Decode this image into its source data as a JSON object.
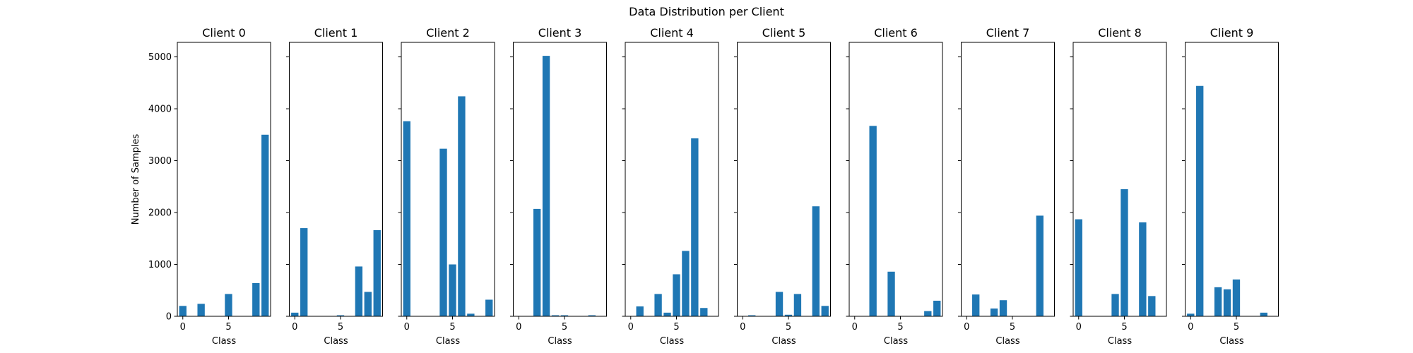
{
  "chart_data": {
    "type": "bar",
    "suptitle": "Data Distribution per Client",
    "xlabel": "Class",
    "ylabel": "Number of Samples",
    "ylim": [
      0,
      5280
    ],
    "yticks": [
      0,
      1000,
      2000,
      3000,
      4000,
      5000
    ],
    "xlim": [
      -0.6,
      9.6
    ],
    "xticks": [
      0,
      5
    ],
    "bar_color": "#1f77b4",
    "grid": false,
    "categories": [
      0,
      1,
      2,
      3,
      4,
      5,
      6,
      7,
      8,
      9
    ],
    "series": [
      {
        "name": "Client 0",
        "values": [
          200,
          0,
          240,
          0,
          0,
          430,
          0,
          0,
          640,
          3500
        ]
      },
      {
        "name": "Client 1",
        "values": [
          70,
          1700,
          0,
          0,
          0,
          20,
          0,
          960,
          470,
          1660
        ]
      },
      {
        "name": "Client 2",
        "values": [
          3760,
          0,
          0,
          0,
          3230,
          1000,
          4240,
          50,
          0,
          320
        ]
      },
      {
        "name": "Client 3",
        "values": [
          0,
          0,
          2070,
          5020,
          20,
          20,
          0,
          0,
          20,
          0
        ]
      },
      {
        "name": "Client 4",
        "values": [
          0,
          190,
          0,
          430,
          70,
          810,
          1260,
          3430,
          160,
          0
        ]
      },
      {
        "name": "Client 5",
        "values": [
          0,
          20,
          0,
          0,
          470,
          30,
          430,
          0,
          2120,
          200
        ]
      },
      {
        "name": "Client 6",
        "values": [
          0,
          0,
          3670,
          0,
          860,
          0,
          0,
          0,
          100,
          300
        ]
      },
      {
        "name": "Client 7",
        "values": [
          0,
          420,
          0,
          150,
          310,
          0,
          0,
          0,
          1940,
          0
        ]
      },
      {
        "name": "Client 8",
        "values": [
          1870,
          0,
          0,
          0,
          430,
          2450,
          0,
          1810,
          390,
          0
        ]
      },
      {
        "name": "Client 9",
        "values": [
          50,
          4440,
          0,
          560,
          520,
          710,
          0,
          0,
          70,
          0
        ]
      }
    ]
  }
}
